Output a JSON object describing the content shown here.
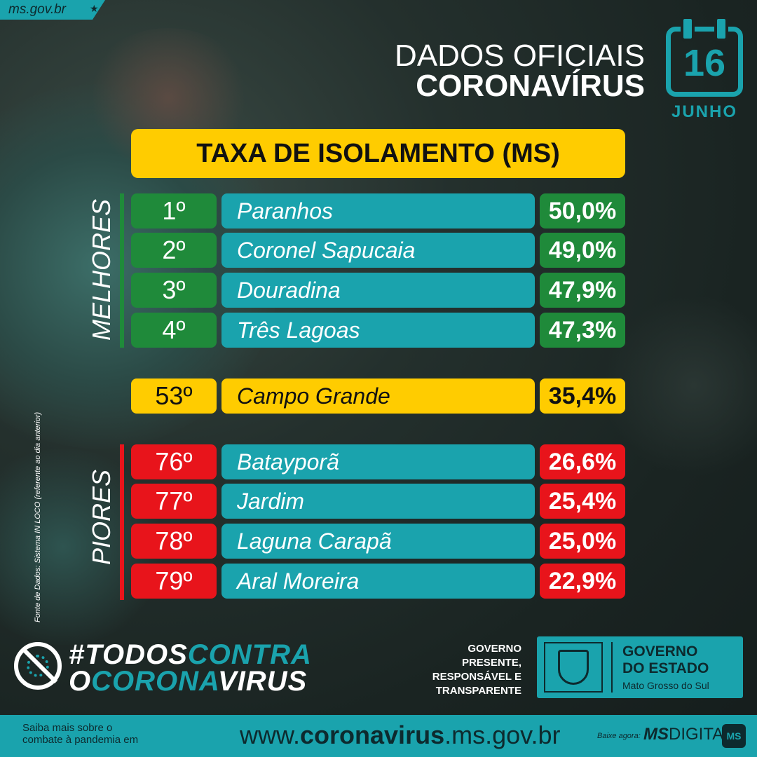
{
  "site_tag": "ms.gov.br",
  "header": {
    "line1": "DADOS OFICIAIS",
    "line2": "CORONAVÍRUS"
  },
  "date": {
    "day": "16",
    "month": "JUNHO"
  },
  "banner": "TAXA DE ISOLAMENTO (MS)",
  "best_label": "MELHORES",
  "worst_label": "PIORES",
  "best": [
    {
      "pos": "1º",
      "city": "Paranhos",
      "pct": "50,0%"
    },
    {
      "pos": "2º",
      "city": "Coronel Sapucaia",
      "pct": "49,0%"
    },
    {
      "pos": "3º",
      "city": "Douradina",
      "pct": "47,9%"
    },
    {
      "pos": "4º",
      "city": "Três Lagoas",
      "pct": "47,3%"
    }
  ],
  "capital": {
    "pos": "53º",
    "city": "Campo Grande",
    "pct": "35,4%"
  },
  "worst": [
    {
      "pos": "76º",
      "city": "Batayporã",
      "pct": "26,6%"
    },
    {
      "pos": "77º",
      "city": "Jardim",
      "pct": "25,4%"
    },
    {
      "pos": "78º",
      "city": "Laguna Carapã",
      "pct": "25,0%"
    },
    {
      "pos": "79º",
      "city": "Aral Moreira",
      "pct": "22,9%"
    }
  ],
  "source": "Fonte de Dados: Sistema IN LOCO (referente ao dia anterior)",
  "hashtag": {
    "a": "#TODOS",
    "b": "CONTRA",
    "c": "O",
    "d": "CORONA",
    "e": "VIRUS"
  },
  "gov_slogan": [
    "GOVERNO",
    "PRESENTE,",
    "RESPONSÁVEL E",
    "TRANSPARENTE"
  ],
  "gov_box": {
    "line1": "GOVERNO",
    "line2": "DO ESTADO",
    "sub": "Mato Grosso do Sul"
  },
  "footer": {
    "left1": "Saiba mais sobre o",
    "left2": "combate à pandemia em",
    "url_pre": "www.",
    "url_bold": "coronavirus",
    "url_post": ".ms.gov.br",
    "baixe": "Baixe agora:",
    "app_bold": "MS",
    "app_rest": "DIGITAL",
    "app_icon": "MS"
  },
  "colors": {
    "teal": "#1aa3ad",
    "yellow": "#ffcc00",
    "green": "#1f8a3a",
    "red": "#e8141b"
  }
}
